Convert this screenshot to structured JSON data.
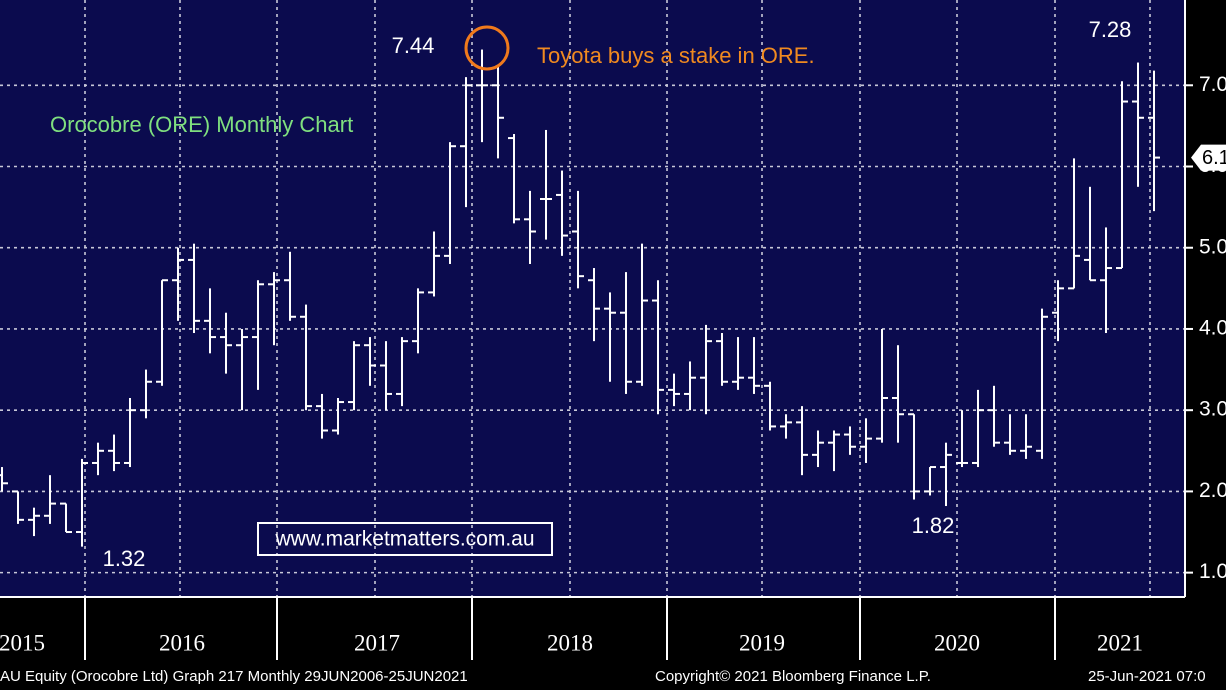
{
  "chart_data": {
    "type": "ohlc",
    "title": "Orocobre (ORE) Monthly Chart",
    "color": "#ffffff",
    "grid": true,
    "ylim": [
      0.7,
      8.05
    ],
    "yticks": [
      {
        "value": 1,
        "label": "1.0"
      },
      {
        "value": 2,
        "label": "2.0"
      },
      {
        "value": 3,
        "label": "3.0"
      },
      {
        "value": 4,
        "label": "4.0"
      },
      {
        "value": 5,
        "label": "5.0"
      },
      {
        "value": 6,
        "label": "6.0"
      },
      {
        "value": 7,
        "label": "7.0"
      }
    ],
    "year_labels": [
      "2015",
      "2016",
      "2017",
      "2018",
      "2019",
      "2020",
      "2021"
    ],
    "categories": [
      null,
      null,
      null,
      null,
      null,
      null,
      null,
      null,
      null,
      null,
      null,
      null,
      null,
      null,
      null,
      null,
      null,
      null,
      null,
      null,
      null,
      null,
      null,
      null,
      null,
      null,
      null,
      null,
      null,
      null,
      null,
      null,
      null,
      null,
      null,
      null,
      null,
      null,
      null,
      null,
      null,
      null,
      null,
      null,
      null,
      null,
      null,
      null,
      null,
      null,
      null,
      null,
      null,
      null,
      null,
      null,
      null,
      null,
      null,
      null,
      null,
      null,
      null,
      null,
      null,
      null,
      null,
      null,
      null,
      null,
      null,
      null,
      null
    ],
    "open": [
      2.2,
      2.0,
      1.65,
      1.7,
      1.85,
      1.5,
      2.35,
      2.5,
      2.35,
      3.0,
      3.35,
      4.6,
      4.85,
      4.1,
      3.9,
      3.8,
      3.9,
      4.55,
      4.6,
      4.15,
      3.05,
      2.75,
      3.1,
      3.8,
      3.55,
      3.2,
      3.85,
      4.45,
      4.9,
      6.25,
      7.0,
      7.0,
      6.35,
      5.35,
      5.6,
      5.65,
      5.2,
      4.6,
      4.25,
      4.2,
      3.35,
      4.35,
      3.25,
      3.2,
      3.4,
      3.85,
      3.35,
      3.4,
      3.3,
      2.8,
      2.85,
      2.45,
      2.6,
      2.7,
      2.55,
      2.65,
      3.15,
      2.95,
      2.0,
      2.3,
      2.35,
      2.35,
      3.0,
      2.6,
      2.5,
      2.5,
      4.2,
      4.5,
      4.85,
      4.6,
      4.75,
      6.8,
      6.6
    ],
    "high": [
      2.3,
      2.0,
      1.8,
      2.2,
      1.85,
      2.4,
      2.6,
      2.7,
      3.15,
      3.5,
      4.6,
      5.0,
      5.05,
      4.5,
      4.2,
      4.0,
      4.6,
      4.7,
      4.95,
      4.3,
      3.2,
      3.15,
      3.85,
      3.9,
      3.85,
      3.9,
      4.5,
      5.2,
      6.3,
      7.1,
      7.44,
      7.25,
      6.4,
      5.7,
      6.45,
      5.95,
      5.7,
      4.75,
      4.45,
      4.7,
      5.05,
      4.6,
      3.45,
      3.6,
      4.05,
      3.95,
      3.9,
      3.9,
      3.35,
      2.95,
      3.05,
      2.75,
      2.75,
      2.8,
      2.9,
      4.0,
      3.8,
      2.95,
      2.3,
      2.6,
      3.0,
      3.25,
      3.3,
      2.95,
      2.95,
      4.25,
      4.6,
      6.1,
      5.75,
      5.25,
      7.05,
      7.28,
      7.18
    ],
    "low": [
      2.0,
      1.6,
      1.45,
      1.6,
      1.5,
      1.32,
      2.2,
      2.25,
      2.3,
      2.9,
      3.3,
      4.1,
      3.95,
      3.7,
      3.45,
      3.0,
      3.25,
      3.8,
      4.1,
      3.0,
      2.65,
      2.7,
      3.0,
      3.3,
      3.0,
      3.05,
      3.7,
      4.4,
      4.8,
      5.5,
      6.3,
      6.1,
      5.3,
      4.8,
      5.1,
      4.9,
      4.5,
      3.85,
      3.35,
      3.2,
      3.3,
      2.95,
      3.05,
      3.0,
      2.95,
      3.3,
      3.25,
      3.2,
      2.75,
      2.65,
      2.2,
      2.3,
      2.25,
      2.45,
      2.35,
      2.6,
      2.6,
      1.9,
      1.95,
      1.82,
      2.3,
      2.3,
      2.55,
      2.45,
      2.4,
      2.4,
      3.85,
      4.5,
      4.6,
      3.95,
      4.75,
      5.75,
      5.45
    ],
    "close": [
      2.1,
      1.65,
      1.7,
      1.85,
      1.5,
      2.35,
      2.5,
      2.35,
      3.0,
      3.35,
      4.6,
      4.85,
      4.1,
      3.9,
      3.8,
      3.9,
      4.55,
      4.6,
      4.15,
      3.05,
      2.75,
      3.1,
      3.8,
      3.55,
      3.2,
      3.85,
      4.45,
      4.9,
      6.25,
      7.0,
      7.0,
      6.6,
      5.35,
      5.2,
      5.6,
      5.15,
      4.65,
      4.25,
      4.2,
      3.35,
      4.35,
      3.25,
      3.2,
      3.4,
      3.85,
      3.35,
      3.4,
      3.3,
      2.8,
      2.85,
      2.45,
      2.6,
      2.7,
      2.55,
      2.65,
      3.15,
      2.95,
      2.0,
      2.3,
      2.45,
      2.35,
      3.0,
      2.6,
      2.5,
      2.55,
      4.15,
      4.5,
      4.9,
      4.6,
      4.75,
      6.8,
      6.6,
      6.11
    ],
    "point_labels": [
      7.44,
      7.28,
      1.32,
      1.82
    ],
    "annotation": "Toyota buys a stake in ORE.",
    "watermark": "www.marketmatters.com.au"
  },
  "footer": {
    "left": "AU Equity (Orocobre Ltd) Graph 217  Monthly 29JUN2006-25JUN2021",
    "center": "Copyright© 2021 Bloomberg Finance L.P.",
    "right": "25-Jun-2021 07:0"
  }
}
